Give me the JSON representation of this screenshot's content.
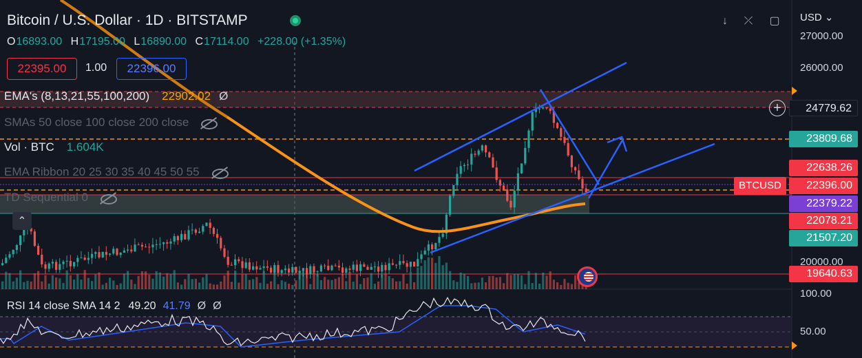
{
  "header": {
    "title": "Bitcoin / U.S. Dollar · 1D · BITSTAMP",
    "ohlc": [
      {
        "k": "O",
        "v": "16893.00"
      },
      {
        "k": "H",
        "v": "17195.00"
      },
      {
        "k": "L",
        "v": "16890.00"
      },
      {
        "k": "C",
        "v": "17114.00"
      }
    ],
    "change": "+228.00 (+1.35%)",
    "sell_price": "22395.00",
    "spread": "1.00",
    "buy_price": "22396.00"
  },
  "indicators": {
    "ema_name": "EMA's (8,13,21,55,100,200)",
    "ema_value": "22902.02",
    "ema_extra": "Ø",
    "sma_name": "SMAs 50 close 100 close 200 close",
    "vol_name": "Vol · BTC",
    "vol_value": "1.604K",
    "ribbon_name": "EMA Ribbon 20 25 30 35 40 45 50 55",
    "td_name": "TD Sequential 0"
  },
  "rsi": {
    "name": "RSI 14 close SMA 14 2",
    "value": "49.20",
    "sma_value": "41.79",
    "extra1": "Ø",
    "extra2": "Ø"
  },
  "toolbar": {
    "currency": "USD",
    "down_icon": "arrow-down-icon",
    "collapse_icon": "collapse-arrows-icon",
    "layout_icon": "layout-icon"
  },
  "axis": {
    "ticks": [
      "27000.00",
      "26000.00",
      "20000.00",
      "100.00",
      "50.00"
    ],
    "tags": [
      {
        "name": "crosshair",
        "text": "24779.62",
        "bg": "#131722",
        "fg": "#e6e8ee"
      },
      {
        "name": "ema-level",
        "text": "23809.68",
        "bg": "#26a69a",
        "fg": "#ffffff"
      },
      {
        "name": "upper-band",
        "text": "22638.26",
        "bg": "#f23645",
        "fg": "#ffffff"
      },
      {
        "name": "last-price",
        "text": "22396.00",
        "bg": "#f23645",
        "fg": "#ffffff"
      },
      {
        "name": "ribbon-level",
        "text": "22379.22",
        "bg": "#7b3fd6",
        "fg": "#ffffff"
      },
      {
        "name": "lower-level",
        "text": "22078.21",
        "bg": "#f23645",
        "fg": "#ffffff"
      },
      {
        "name": "support",
        "text": "21507.20",
        "bg": "#26a69a",
        "fg": "#ffffff"
      },
      {
        "name": "low-level",
        "text": "19640.63",
        "bg": "#f23645",
        "fg": "#ffffff"
      }
    ],
    "symbol_tag": "BTCUSD"
  },
  "colors": {
    "up": "#26a69a",
    "down": "#ef5350",
    "ema": "#f7931a",
    "trend": "#2962ff"
  }
}
